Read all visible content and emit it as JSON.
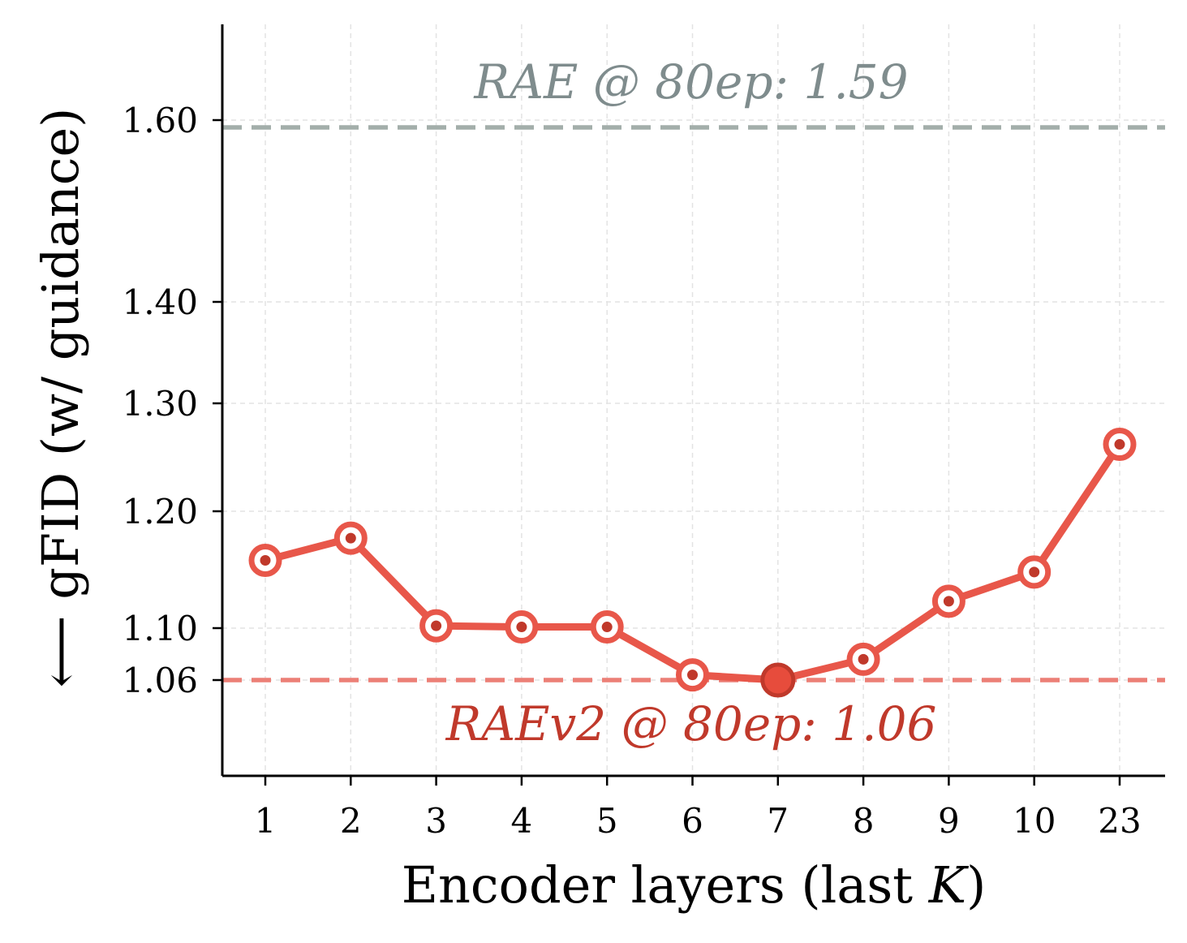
{
  "chart_data": {
    "type": "line",
    "title": "",
    "xlabel_prefix": "Encoder layers (last ",
    "xlabel_var": "K",
    "xlabel_suffix": ")",
    "ylabel": "gFID (w/ guidance)",
    "ylabel_arrow": "⟵",
    "categories": [
      "1",
      "2",
      "3",
      "4",
      "5",
      "6",
      "7",
      "8",
      "9",
      "10",
      "23"
    ],
    "yticks": [
      "1.06",
      "1.10",
      "1.20",
      "1.30",
      "1.40",
      "1.60"
    ],
    "ylim": [
      1.0,
      1.7
    ],
    "y_scale": "nonlinear",
    "grid": true,
    "series": [
      {
        "values": [
          1.158,
          1.177,
          1.102,
          1.101,
          1.101,
          1.064,
          1.06,
          1.076,
          1.123,
          1.148,
          1.262
        ],
        "color": "#E8574A",
        "highlight_index": 6
      }
    ],
    "reference_lines": [
      {
        "label": "RAE @ 80ep: 1.59",
        "value": 1.592,
        "color": "#A3AEAA",
        "text_color": "#7F8C8D"
      },
      {
        "label": "RAEv2 @ 80ep: 1.06",
        "value": 1.06,
        "color": "#EC7F76",
        "text_color": "#C0392B"
      }
    ]
  }
}
